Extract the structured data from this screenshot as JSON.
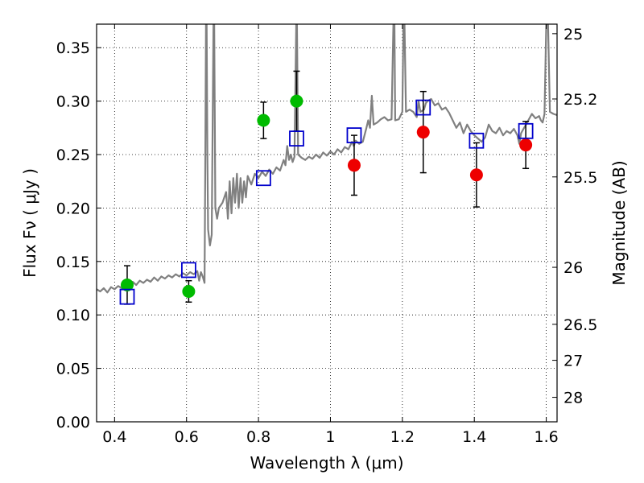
{
  "chart_data": {
    "type": "scatter",
    "xlabel": "Wavelength  λ (μm)",
    "ylabel": "Flux  Fν  ( μJy )",
    "y2label": "Magnitude (AB)",
    "xlim": [
      0.35,
      1.63
    ],
    "ylim": [
      0.0,
      0.372
    ],
    "grid": true,
    "x_ticks": [
      "0.4",
      "0.6",
      "0.8",
      "1",
      "1.2",
      "1.4",
      "1.6"
    ],
    "x_tick_values": [
      0.4,
      0.6,
      0.8,
      1.0,
      1.2,
      1.4,
      1.6
    ],
    "y_ticks": [
      "0.00",
      "0.05",
      "0.10",
      "0.15",
      "0.20",
      "0.25",
      "0.30",
      "0.35"
    ],
    "y_tick_values": [
      0.0,
      0.05,
      0.1,
      0.15,
      0.2,
      0.25,
      0.3,
      0.35
    ],
    "mag_ticks": [
      {
        "label": "25",
        "value": 25.0
      },
      {
        "label": "25.2",
        "value": 25.2
      },
      {
        "label": "25.5",
        "value": 25.5
      },
      {
        "label": "26",
        "value": 26.0
      },
      {
        "label": "26.5",
        "value": 26.5
      },
      {
        "label": "27",
        "value": 27.0
      },
      {
        "label": "28",
        "value": 28.0
      }
    ],
    "series": [
      {
        "marker": "circle",
        "color": "#00bb00",
        "points": [
          {
            "x": 0.435,
            "y": 0.128,
            "err": 0.018
          },
          {
            "x": 0.606,
            "y": 0.122,
            "err": 0.01
          },
          {
            "x": 0.814,
            "y": 0.282,
            "err": 0.017
          },
          {
            "x": 0.906,
            "y": 0.3,
            "err": 0.028
          }
        ]
      },
      {
        "marker": "circle",
        "color": "#ee0000",
        "points": [
          {
            "x": 1.066,
            "y": 0.24,
            "err": 0.028
          },
          {
            "x": 1.258,
            "y": 0.271,
            "err": 0.038
          },
          {
            "x": 1.406,
            "y": 0.231,
            "err": 0.03
          },
          {
            "x": 1.543,
            "y": 0.259,
            "err": 0.022
          }
        ]
      },
      {
        "marker": "open-square",
        "color": "#0000cc",
        "points": [
          {
            "x": 0.435,
            "y": 0.117
          },
          {
            "x": 0.606,
            "y": 0.142
          },
          {
            "x": 0.814,
            "y": 0.228
          },
          {
            "x": 0.906,
            "y": 0.265
          },
          {
            "x": 1.066,
            "y": 0.268
          },
          {
            "x": 1.258,
            "y": 0.294
          },
          {
            "x": 1.406,
            "y": 0.263
          },
          {
            "x": 1.543,
            "y": 0.272
          }
        ]
      }
    ],
    "spectrum": {
      "color": "#808080",
      "points": [
        [
          0.35,
          0.124
        ],
        [
          0.36,
          0.122
        ],
        [
          0.37,
          0.125
        ],
        [
          0.38,
          0.121
        ],
        [
          0.39,
          0.126
        ],
        [
          0.4,
          0.124
        ],
        [
          0.41,
          0.127
        ],
        [
          0.42,
          0.125
        ],
        [
          0.43,
          0.13
        ],
        [
          0.44,
          0.127
        ],
        [
          0.45,
          0.131
        ],
        [
          0.46,
          0.128
        ],
        [
          0.47,
          0.132
        ],
        [
          0.48,
          0.13
        ],
        [
          0.49,
          0.133
        ],
        [
          0.5,
          0.131
        ],
        [
          0.51,
          0.135
        ],
        [
          0.52,
          0.132
        ],
        [
          0.53,
          0.136
        ],
        [
          0.54,
          0.134
        ],
        [
          0.55,
          0.137
        ],
        [
          0.56,
          0.135
        ],
        [
          0.57,
          0.138
        ],
        [
          0.58,
          0.136
        ],
        [
          0.59,
          0.139
        ],
        [
          0.6,
          0.137
        ],
        [
          0.61,
          0.14
        ],
        [
          0.62,
          0.138
        ],
        [
          0.63,
          0.141
        ],
        [
          0.635,
          0.132
        ],
        [
          0.64,
          0.14
        ],
        [
          0.645,
          0.136
        ],
        [
          0.65,
          0.13
        ],
        [
          0.652,
          0.24
        ],
        [
          0.654,
          0.372
        ],
        [
          0.656,
          0.372
        ],
        [
          0.658,
          0.25
        ],
        [
          0.66,
          0.18
        ],
        [
          0.665,
          0.165
        ],
        [
          0.67,
          0.175
        ],
        [
          0.675,
          0.372
        ],
        [
          0.677,
          0.372
        ],
        [
          0.68,
          0.2
        ],
        [
          0.685,
          0.19
        ],
        [
          0.69,
          0.2
        ],
        [
          0.7,
          0.205
        ],
        [
          0.71,
          0.215
        ],
        [
          0.715,
          0.19
        ],
        [
          0.72,
          0.225
        ],
        [
          0.725,
          0.195
        ],
        [
          0.73,
          0.228
        ],
        [
          0.735,
          0.205
        ],
        [
          0.74,
          0.232
        ],
        [
          0.745,
          0.2
        ],
        [
          0.75,
          0.228
        ],
        [
          0.755,
          0.205
        ],
        [
          0.76,
          0.225
        ],
        [
          0.765,
          0.21
        ],
        [
          0.77,
          0.23
        ],
        [
          0.78,
          0.222
        ],
        [
          0.79,
          0.232
        ],
        [
          0.8,
          0.228
        ],
        [
          0.81,
          0.234
        ],
        [
          0.82,
          0.23
        ],
        [
          0.83,
          0.236
        ],
        [
          0.84,
          0.232
        ],
        [
          0.85,
          0.238
        ],
        [
          0.86,
          0.235
        ],
        [
          0.87,
          0.245
        ],
        [
          0.875,
          0.24
        ],
        [
          0.88,
          0.258
        ],
        [
          0.885,
          0.245
        ],
        [
          0.89,
          0.25
        ],
        [
          0.895,
          0.243
        ],
        [
          0.9,
          0.248
        ],
        [
          0.905,
          0.372
        ],
        [
          0.907,
          0.372
        ],
        [
          0.91,
          0.25
        ],
        [
          0.92,
          0.247
        ],
        [
          0.93,
          0.245
        ],
        [
          0.94,
          0.248
        ],
        [
          0.95,
          0.246
        ],
        [
          0.96,
          0.25
        ],
        [
          0.97,
          0.247
        ],
        [
          0.98,
          0.252
        ],
        [
          0.99,
          0.249
        ],
        [
          1.0,
          0.253
        ],
        [
          1.01,
          0.25
        ],
        [
          1.02,
          0.255
        ],
        [
          1.03,
          0.252
        ],
        [
          1.04,
          0.257
        ],
        [
          1.05,
          0.255
        ],
        [
          1.06,
          0.262
        ],
        [
          1.065,
          0.258
        ],
        [
          1.07,
          0.263
        ],
        [
          1.08,
          0.26
        ],
        [
          1.09,
          0.262
        ],
        [
          1.1,
          0.275
        ],
        [
          1.105,
          0.282
        ],
        [
          1.11,
          0.275
        ],
        [
          1.115,
          0.305
        ],
        [
          1.12,
          0.278
        ],
        [
          1.13,
          0.28
        ],
        [
          1.14,
          0.283
        ],
        [
          1.15,
          0.285
        ],
        [
          1.16,
          0.282
        ],
        [
          1.17,
          0.283
        ],
        [
          1.175,
          0.372
        ],
        [
          1.178,
          0.372
        ],
        [
          1.18,
          0.282
        ],
        [
          1.19,
          0.283
        ],
        [
          1.2,
          0.29
        ],
        [
          1.203,
          0.372
        ],
        [
          1.206,
          0.372
        ],
        [
          1.21,
          0.29
        ],
        [
          1.22,
          0.292
        ],
        [
          1.23,
          0.29
        ],
        [
          1.24,
          0.285
        ],
        [
          1.245,
          0.3
        ],
        [
          1.25,
          0.29
        ],
        [
          1.26,
          0.292
        ],
        [
          1.265,
          0.298
        ],
        [
          1.27,
          0.3
        ],
        [
          1.28,
          0.302
        ],
        [
          1.29,
          0.296
        ],
        [
          1.3,
          0.298
        ],
        [
          1.31,
          0.292
        ],
        [
          1.32,
          0.294
        ],
        [
          1.33,
          0.289
        ],
        [
          1.34,
          0.282
        ],
        [
          1.35,
          0.275
        ],
        [
          1.36,
          0.28
        ],
        [
          1.37,
          0.27
        ],
        [
          1.38,
          0.278
        ],
        [
          1.39,
          0.272
        ],
        [
          1.4,
          0.268
        ],
        [
          1.41,
          0.265
        ],
        [
          1.42,
          0.262
        ],
        [
          1.43,
          0.266
        ],
        [
          1.44,
          0.278
        ],
        [
          1.45,
          0.272
        ],
        [
          1.46,
          0.27
        ],
        [
          1.47,
          0.275
        ],
        [
          1.48,
          0.268
        ],
        [
          1.49,
          0.272
        ],
        [
          1.5,
          0.27
        ],
        [
          1.51,
          0.274
        ],
        [
          1.52,
          0.268
        ],
        [
          1.525,
          0.26
        ],
        [
          1.53,
          0.27
        ],
        [
          1.54,
          0.276
        ],
        [
          1.55,
          0.282
        ],
        [
          1.56,
          0.288
        ],
        [
          1.57,
          0.284
        ],
        [
          1.58,
          0.286
        ],
        [
          1.585,
          0.282
        ],
        [
          1.59,
          0.28
        ],
        [
          1.595,
          0.288
        ],
        [
          1.6,
          0.372
        ],
        [
          1.605,
          0.372
        ],
        [
          1.61,
          0.29
        ],
        [
          1.62,
          0.288
        ],
        [
          1.63,
          0.287
        ]
      ]
    }
  }
}
